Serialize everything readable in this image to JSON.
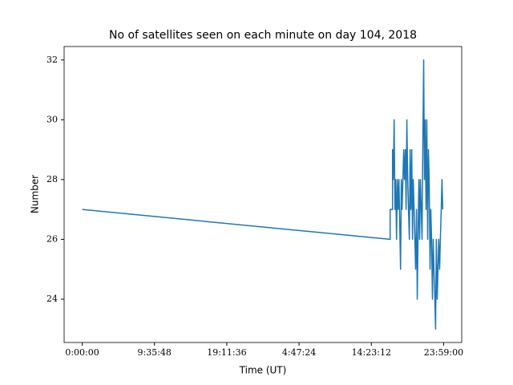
{
  "chart_data": {
    "type": "line",
    "title": "No of satellites seen on each minute on day 104, 2018",
    "xlabel": "Time (UT)",
    "ylabel": "Number",
    "x": [
      0,
      2453,
      2453,
      2472,
      2472,
      2478,
      2485,
      2491,
      2497,
      2504,
      2510,
      2517,
      2523,
      2536,
      2542,
      2548,
      2561,
      2567,
      2574,
      2580,
      2586,
      2593,
      2599,
      2606,
      2612,
      2618,
      2625,
      2631,
      2637,
      2644,
      2650,
      2656,
      2663,
      2669,
      2675,
      2682,
      2688,
      2694,
      2701,
      2707,
      2713,
      2720,
      2726,
      2732,
      2739,
      2745,
      2752,
      2758,
      2764,
      2771,
      2777,
      2783,
      2790,
      2796,
      2802,
      2809,
      2815,
      2821,
      2828,
      2834,
      2840,
      2847,
      2853,
      2860,
      2866,
      2872
    ],
    "series": [
      {
        "color": "#1f77b4",
        "values": [
          27,
          26,
          27,
          27,
          29,
          28,
          30,
          27,
          28,
          26,
          28,
          27,
          28,
          25,
          28,
          27,
          29,
          28,
          29,
          27,
          30,
          28,
          27,
          26,
          29,
          27,
          29,
          26,
          28,
          27,
          26,
          25,
          27,
          24,
          26,
          28,
          26,
          28,
          27,
          26,
          29,
          32,
          28,
          30,
          27,
          30,
          26,
          29,
          28,
          25,
          27,
          26,
          24,
          26,
          25,
          24,
          23,
          26,
          24,
          25,
          26,
          25,
          26,
          27,
          28,
          27
        ]
      }
    ],
    "xlim": [
      -144,
      3023
    ],
    "ylim": [
      22.55,
      32.45
    ],
    "xticks": [
      {
        "value": 0,
        "label": "0:00:00"
      },
      {
        "value": 575.8,
        "label": "9:35:48"
      },
      {
        "value": 1151.6,
        "label": "19:11:36"
      },
      {
        "value": 1727.4,
        "label": "4:47:24"
      },
      {
        "value": 2303.2,
        "label": "14:23:12"
      },
      {
        "value": 2879,
        "label": "23:59:00"
      }
    ],
    "yticks": [
      24,
      26,
      28,
      30,
      32
    ]
  }
}
